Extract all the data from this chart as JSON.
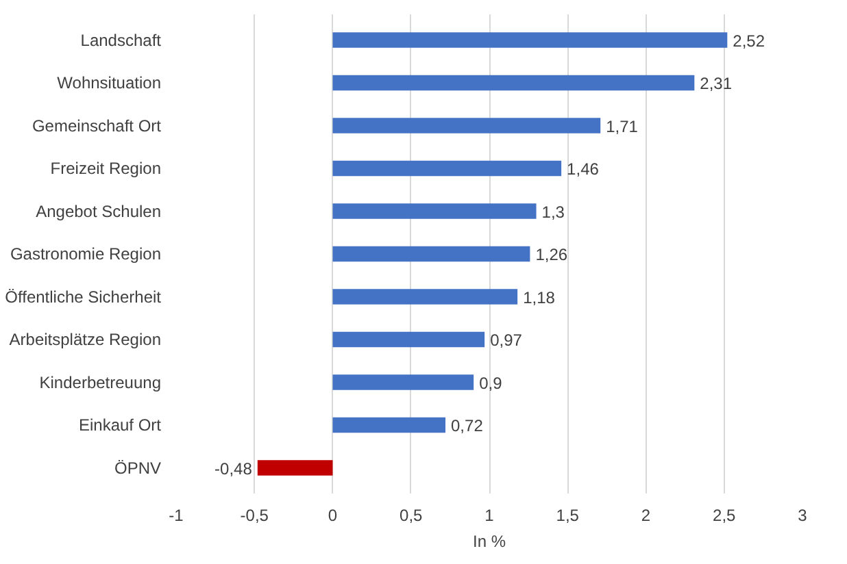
{
  "chart_data": {
    "type": "bar",
    "orientation": "horizontal",
    "xlabel": "In %",
    "categories": [
      "Landschaft",
      "Wohnsituation",
      "Gemeinschaft Ort",
      "Freizeit Region",
      "Angebot Schulen",
      "Gastronomie Region",
      "Öffentliche Sicherheit",
      "Arbeitsplätze Region",
      "Kinderbetreuung",
      "Einkauf Ort",
      "ÖPNV"
    ],
    "values": [
      2.52,
      2.31,
      1.71,
      1.46,
      1.3,
      1.26,
      1.18,
      0.97,
      0.9,
      0.72,
      -0.48
    ],
    "value_labels": [
      "2,52",
      "2,31",
      "1,71",
      "1,46",
      "1,3",
      "1,26",
      "1,18",
      "0,97",
      "0,9",
      "0,72",
      "-0,48"
    ],
    "colors": [
      "#4472c4",
      "#4472c4",
      "#4472c4",
      "#4472c4",
      "#4472c4",
      "#4472c4",
      "#4472c4",
      "#4472c4",
      "#4472c4",
      "#4472c4",
      "#c00000"
    ],
    "xlim": [
      -1,
      3
    ],
    "xticks": [
      -1,
      {
        "value": -0.5,
        "label": "-0,5"
      },
      0,
      {
        "value": 0.5,
        "label": "0,5"
      },
      1,
      {
        "value": 1.5,
        "label": "1,5"
      },
      2,
      {
        "value": 2.5,
        "label": "2,5"
      },
      3
    ],
    "grid": "x"
  }
}
